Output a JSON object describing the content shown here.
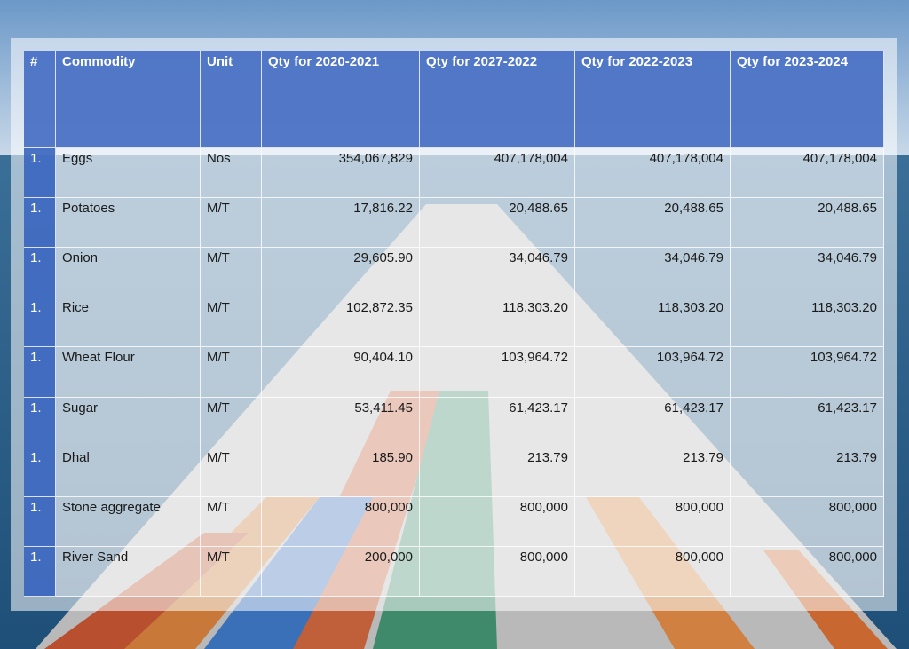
{
  "table": {
    "header": [
      "#",
      "Commodity",
      "Unit",
      "Qty for 2020-2021",
      "Qty for 2027-2022",
      "Qty for 2022-2023",
      "Qty for 2023-2024"
    ],
    "rows": [
      [
        "1.",
        "Eggs",
        "Nos",
        "354,067,829",
        "407,178,004",
        "407,178,004",
        "407,178,004"
      ],
      [
        "1.",
        "Potatoes",
        "M/T",
        "17,816.22",
        "20,488.65",
        "20,488.65",
        "20,488.65"
      ],
      [
        "1.",
        "Onion",
        "M/T",
        "29,605.90",
        "34,046.79",
        "34,046.79",
        "34,046.79"
      ],
      [
        "1.",
        "Rice",
        "M/T",
        "102,872.35",
        "118,303.20",
        "118,303.20",
        "118,303.20"
      ],
      [
        "1.",
        "Wheat Flour",
        "M/T",
        "90,404.10",
        "103,964.72",
        "103,964.72",
        "103,964.72"
      ],
      [
        "1.",
        "Sugar",
        "M/T",
        "53,411.45",
        "61,423.17",
        "61,423.17",
        "61,423.17"
      ],
      [
        "1.",
        "Dhal",
        "M/T",
        "185.90",
        "213.79",
        "213.79",
        "213.79"
      ],
      [
        "1.",
        "Stone aggregate",
        "M/T",
        "800,000",
        "800,000",
        "800,000",
        "800,000"
      ],
      [
        "1.",
        "River Sand",
        "M/T",
        "200,000",
        "800,000",
        "800,000",
        "800,000"
      ]
    ]
  }
}
